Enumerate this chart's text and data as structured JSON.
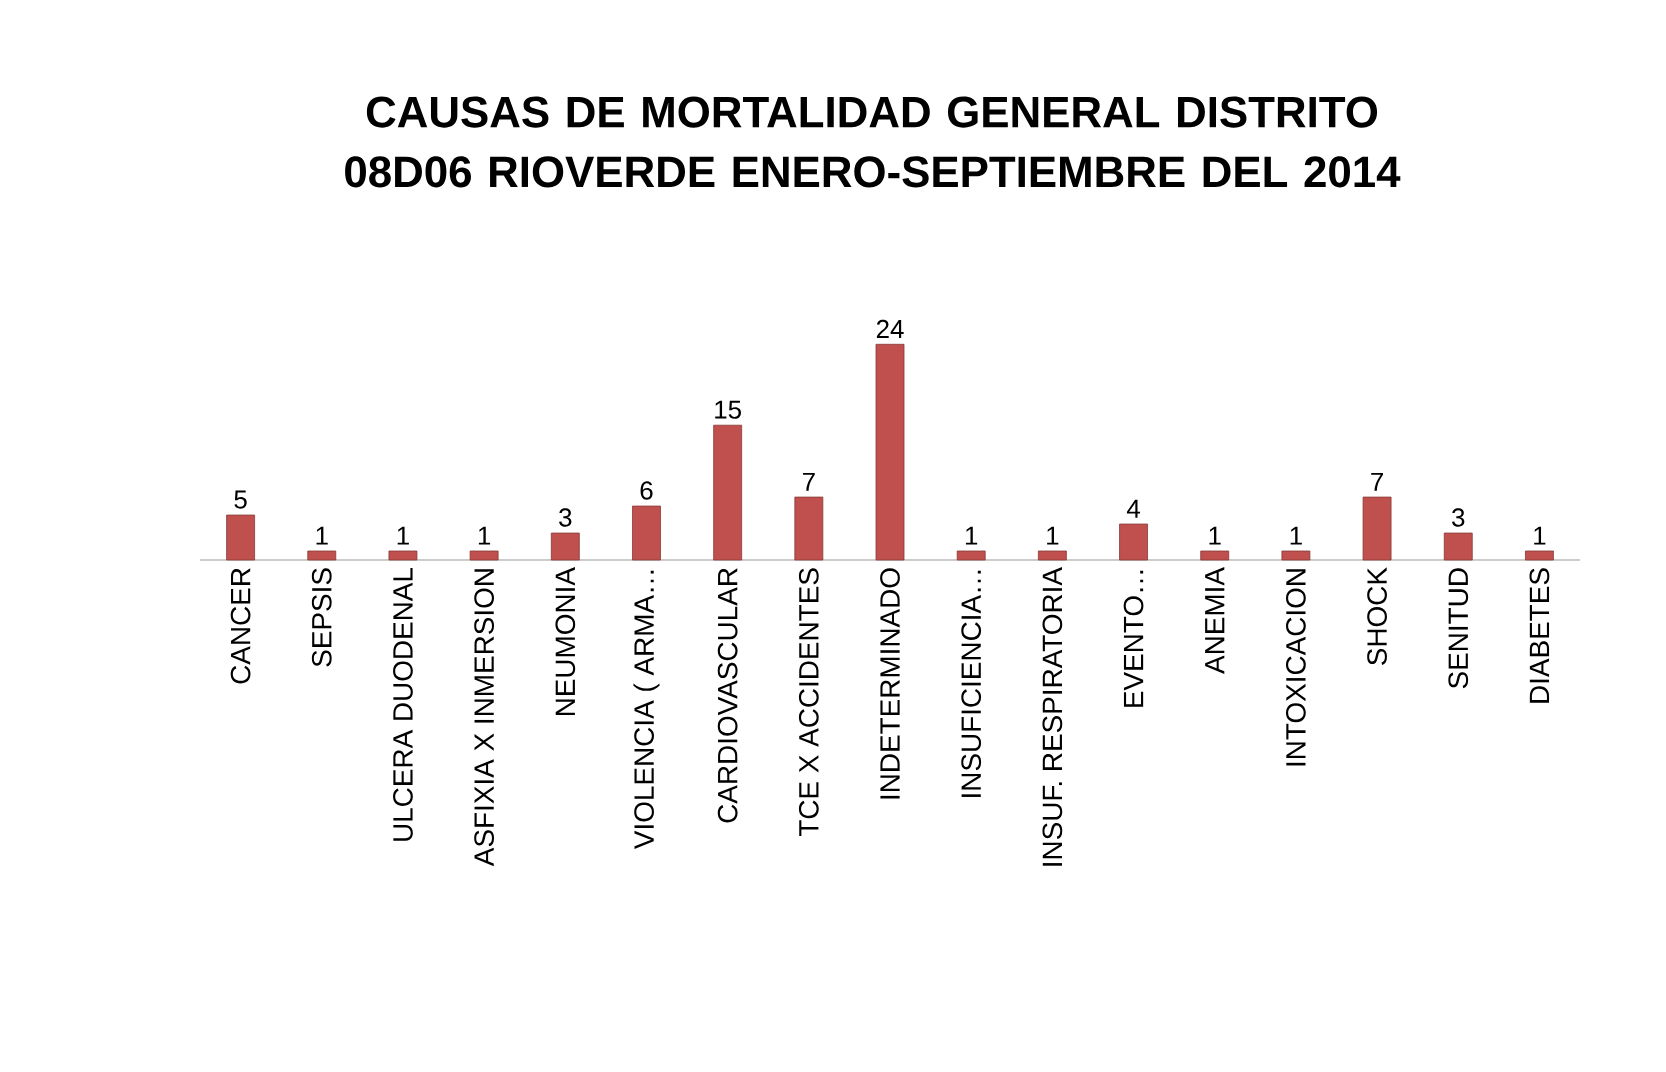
{
  "chart_data": {
    "type": "bar",
    "title": "CAUSAS DE MORTALIDAD GENERAL DISTRITO 08D06 RIOVERDE ENERO-SEPTIEMBRE DEL 2014",
    "categories": [
      "CANCER",
      "SEPSIS",
      "ULCERA DUODENAL",
      "ASFIXIA X INMERSION",
      "NEUMONIA",
      "VIOLENCIA ( ARMA…",
      "CARDIOVASCULAR",
      "TCE X ACCIDENTES",
      "INDETERMINADO",
      "INSUFICIENCIA…",
      "INSUF. RESPIRATORIA",
      "EVENTO…",
      "ANEMIA",
      "INTOXICACION",
      "SHOCK",
      "SENITUD",
      "DIABETES"
    ],
    "values": [
      5,
      1,
      1,
      1,
      3,
      6,
      15,
      7,
      24,
      1,
      1,
      4,
      1,
      1,
      7,
      3,
      1
    ],
    "color": "#c0504d",
    "data_labels": true
  }
}
